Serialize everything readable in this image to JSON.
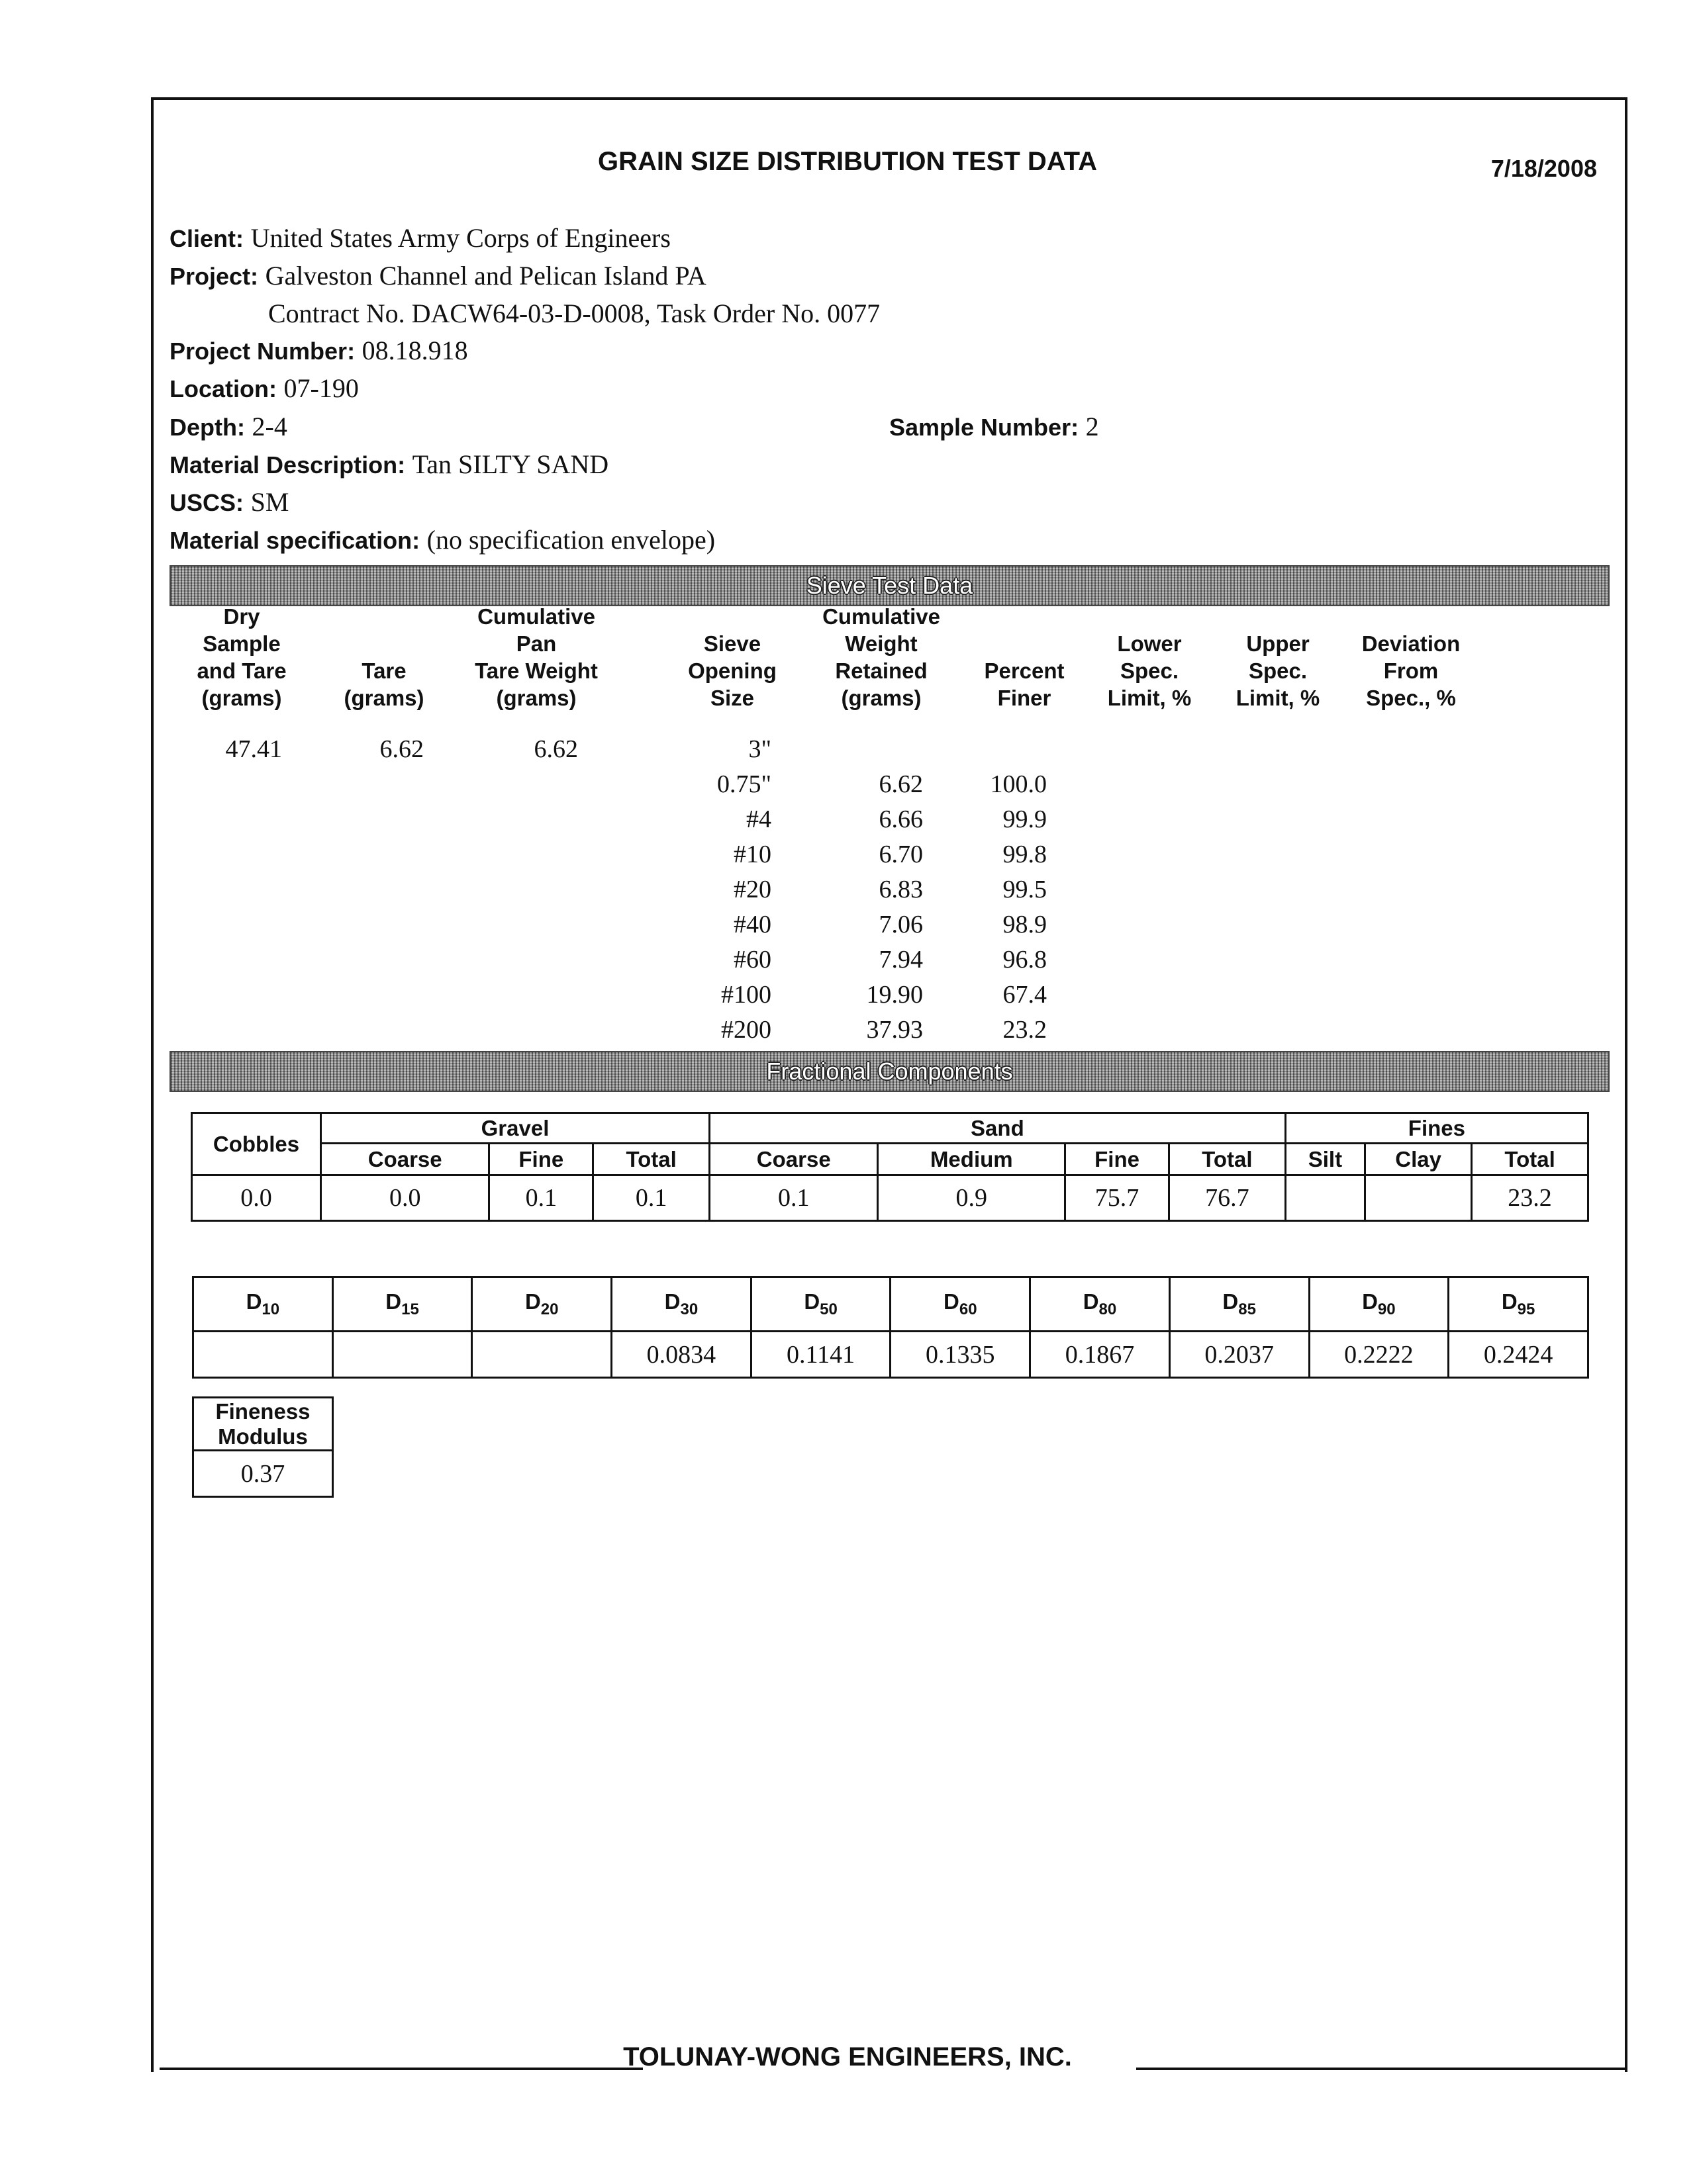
{
  "header": {
    "title": "GRAIN SIZE DISTRIBUTION TEST DATA",
    "date": "7/18/2008"
  },
  "info": {
    "client_label": "Client:",
    "client": "United States Army Corps of Engineers",
    "project_label": "Project:",
    "project": "Galveston Channel and Pelican Island PA",
    "contract": "Contract No. DACW64-03-D-0008, Task Order No. 0077",
    "project_number_label": "Project Number:",
    "project_number": "08.18.918",
    "location_label": "Location:",
    "location": "07-190",
    "depth_label": "Depth:",
    "depth": "2-4",
    "sample_number_label": "Sample Number:",
    "sample_number": "2",
    "material_description_label": "Material Description:",
    "material_description": "Tan SILTY SAND",
    "uscs_label": "USCS:",
    "uscs": "SM",
    "material_spec_label": "Material specification:",
    "material_spec": "(no specification envelope)"
  },
  "sieve": {
    "banner": "Sieve Test Data",
    "headers": [
      "Dry\nSample\nand Tare\n(grams)",
      "Tare\n(grams)",
      "Cumulative\nPan\nTare Weight\n(grams)",
      "Sieve\nOpening\nSize",
      "Cumulative\nWeight\nRetained\n(grams)",
      "Percent\nFiner",
      "Lower\nSpec.\nLimit, %",
      "Upper\nSpec.\nLimit, %",
      "Deviation\nFrom\nSpec., %"
    ],
    "dry_sample_and_tare": "47.41",
    "tare": "6.62",
    "pan_tare_weight": "6.62",
    "rows": [
      {
        "size": "3\"",
        "retained": "",
        "finer": ""
      },
      {
        "size": "0.75\"",
        "retained": "6.62",
        "finer": "100.0"
      },
      {
        "size": "#4",
        "retained": "6.66",
        "finer": "99.9"
      },
      {
        "size": "#10",
        "retained": "6.70",
        "finer": "99.8"
      },
      {
        "size": "#20",
        "retained": "6.83",
        "finer": "99.5"
      },
      {
        "size": "#40",
        "retained": "7.06",
        "finer": "98.9"
      },
      {
        "size": "#60",
        "retained": "7.94",
        "finer": "96.8"
      },
      {
        "size": "#100",
        "retained": "19.90",
        "finer": "67.4"
      },
      {
        "size": "#200",
        "retained": "37.93",
        "finer": "23.2"
      }
    ]
  },
  "fractional": {
    "banner": "Fractional Components",
    "cobbles": "Cobbles",
    "gravel": "Gravel",
    "sand": "Sand",
    "fines": "Fines",
    "subheaders": [
      "Coarse",
      "Fine",
      "Total",
      "Coarse",
      "Medium",
      "Fine",
      "Total",
      "Silt",
      "Clay",
      "Total"
    ],
    "values": [
      "0.0",
      "0.0",
      "0.1",
      "0.1",
      "0.1",
      "0.9",
      "75.7",
      "76.7",
      "",
      "",
      "23.2"
    ]
  },
  "d_values": {
    "headers": [
      {
        "d": "D",
        "sub": "10"
      },
      {
        "d": "D",
        "sub": "15"
      },
      {
        "d": "D",
        "sub": "20"
      },
      {
        "d": "D",
        "sub": "30"
      },
      {
        "d": "D",
        "sub": "50"
      },
      {
        "d": "D",
        "sub": "60"
      },
      {
        "d": "D",
        "sub": "80"
      },
      {
        "d": "D",
        "sub": "85"
      },
      {
        "d": "D",
        "sub": "90"
      },
      {
        "d": "D",
        "sub": "95"
      }
    ],
    "values": [
      "",
      "",
      "",
      "0.0834",
      "0.1141",
      "0.1335",
      "0.1867",
      "0.2037",
      "0.2222",
      "0.2424"
    ]
  },
  "fineness": {
    "label1": "Fineness",
    "label2": "Modulus",
    "value": "0.37"
  },
  "footer": {
    "company": "TOLUNAY-WONG ENGINEERS, INC."
  }
}
